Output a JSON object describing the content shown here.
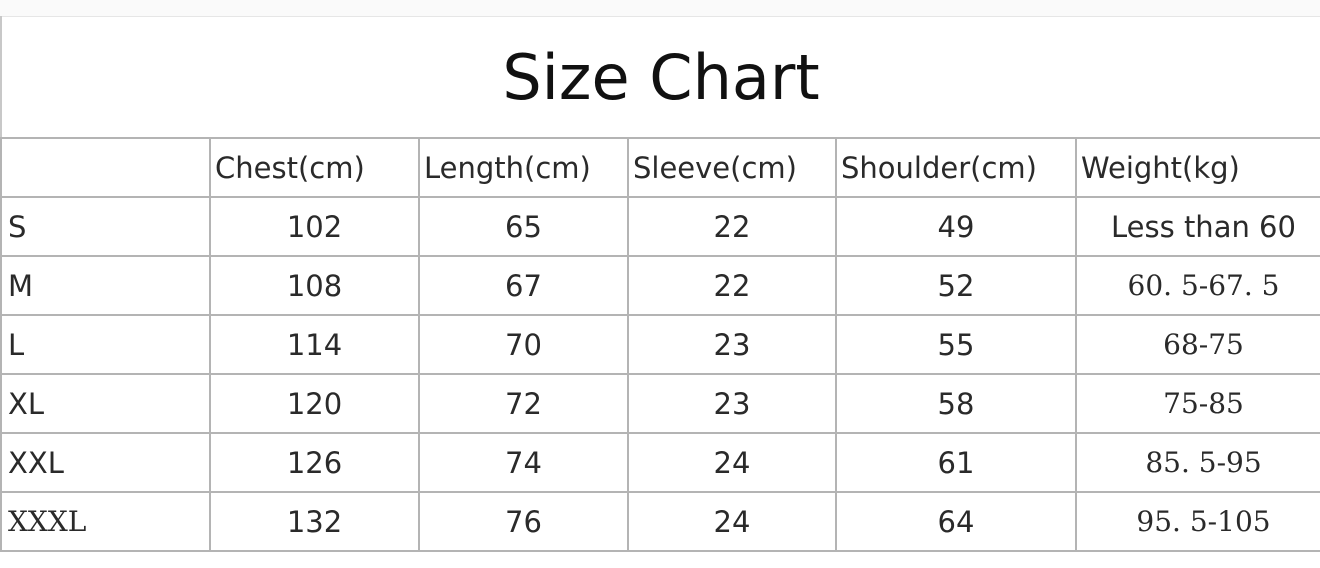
{
  "title": "Size Chart",
  "columns": [
    "",
    "Chest(cm)",
    "Length(cm)",
    "Sleeve(cm)",
    "Shoulder(cm)",
    "Weight(kg)"
  ],
  "rows": [
    {
      "size": "S",
      "chest": "102",
      "length": "65",
      "sleeve": "22",
      "shoulder": "49",
      "weight": "Less than 60"
    },
    {
      "size": "M",
      "chest": "108",
      "length": "67",
      "sleeve": "22",
      "shoulder": "52",
      "weight": "60. 5-67. 5"
    },
    {
      "size": "L",
      "chest": "114",
      "length": "70",
      "sleeve": "23",
      "shoulder": "55",
      "weight": "68-75"
    },
    {
      "size": "XL",
      "chest": "120",
      "length": "72",
      "sleeve": "23",
      "shoulder": "58",
      "weight": "75-85"
    },
    {
      "size": "XXL",
      "chest": "126",
      "length": "74",
      "sleeve": "24",
      "shoulder": "61",
      "weight": "85. 5-95"
    },
    {
      "size": "XXXL",
      "chest": "132",
      "length": "76",
      "sleeve": "24",
      "shoulder": "64",
      "weight": "95. 5-105"
    }
  ]
}
